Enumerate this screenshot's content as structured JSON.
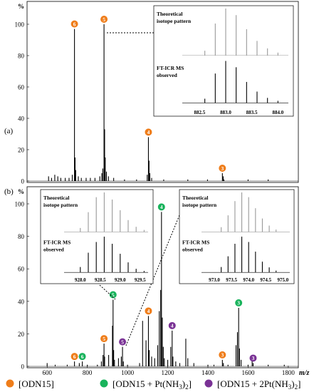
{
  "colors": {
    "odn15": "#ef7d1a",
    "pt1": "#19b35c",
    "pt2": "#7a3295",
    "spectrum": "#000000",
    "inset_theory": "#999999"
  },
  "chart_data": [
    {
      "type": "line",
      "panel_label": "(a)",
      "ylabel": "%",
      "xlim": [
        500,
        1850
      ],
      "ylim": [
        0,
        100
      ],
      "yticks": [
        0,
        20,
        40,
        60,
        80,
        100
      ],
      "peaks": [
        {
          "mz": 607,
          "rel": 3
        },
        {
          "mz": 622,
          "rel": 2
        },
        {
          "mz": 638,
          "rel": 4
        },
        {
          "mz": 653,
          "rel": 3
        },
        {
          "mz": 668,
          "rel": 2
        },
        {
          "mz": 690,
          "rel": 2
        },
        {
          "mz": 709,
          "rel": 2
        },
        {
          "mz": 725,
          "rel": 4
        },
        {
          "mz": 736,
          "rel": 97
        },
        {
          "mz": 739,
          "rel": 15
        },
        {
          "mz": 742,
          "rel": 7
        },
        {
          "mz": 755,
          "rel": 3
        },
        {
          "mz": 770,
          "rel": 2
        },
        {
          "mz": 794,
          "rel": 2
        },
        {
          "mz": 815,
          "rel": 2
        },
        {
          "mz": 838,
          "rel": 2
        },
        {
          "mz": 862,
          "rel": 3
        },
        {
          "mz": 872,
          "rel": 5
        },
        {
          "mz": 877,
          "rel": 8
        },
        {
          "mz": 883,
          "rel": 100
        },
        {
          "mz": 886,
          "rel": 33
        },
        {
          "mz": 889,
          "rel": 15
        },
        {
          "mz": 895,
          "rel": 6
        },
        {
          "mz": 905,
          "rel": 3
        },
        {
          "mz": 931,
          "rel": 2
        },
        {
          "mz": 985,
          "rel": 1
        },
        {
          "mz": 1045,
          "rel": 1
        },
        {
          "mz": 1098,
          "rel": 4
        },
        {
          "mz": 1104,
          "rel": 28
        },
        {
          "mz": 1107,
          "rel": 13
        },
        {
          "mz": 1111,
          "rel": 5
        },
        {
          "mz": 1120,
          "rel": 2
        },
        {
          "mz": 1180,
          "rel": 1
        },
        {
          "mz": 1300,
          "rel": 1
        },
        {
          "mz": 1398,
          "rel": 1
        },
        {
          "mz": 1472,
          "rel": 5
        },
        {
          "mz": 1476,
          "rel": 3
        },
        {
          "mz": 1480,
          "rel": 1
        },
        {
          "mz": 1600,
          "rel": 1
        },
        {
          "mz": 1700,
          "rel": 1
        }
      ],
      "markers": [
        {
          "mz": 736,
          "rel": 97,
          "group": "odn15",
          "label": "6"
        },
        {
          "mz": 883,
          "rel": 100,
          "group": "odn15",
          "label": "5"
        },
        {
          "mz": 1104,
          "rel": 28,
          "group": "odn15",
          "label": "4"
        },
        {
          "mz": 1472,
          "rel": 5,
          "group": "odn15",
          "label": "3"
        }
      ],
      "inset": {
        "theory_label": [
          "Theoretical",
          "isotope pattern"
        ],
        "observed_label": [
          "FT-ICR MS",
          "observed"
        ],
        "ticks": [
          "882.5",
          "883.0",
          "883.5",
          "884.0"
        ],
        "tick_values": [
          882.5,
          883.0,
          883.5,
          884.0
        ],
        "xlim": [
          882.25,
          884.2
        ],
        "theory_peaks": [
          {
            "x": 882.6,
            "h": 0.1
          },
          {
            "x": 882.8,
            "h": 0.68
          },
          {
            "x": 883.0,
            "h": 1.0
          },
          {
            "x": 883.2,
            "h": 0.86
          },
          {
            "x": 883.4,
            "h": 0.56
          },
          {
            "x": 883.6,
            "h": 0.31
          },
          {
            "x": 883.8,
            "h": 0.15
          },
          {
            "x": 884.0,
            "h": 0.06
          }
        ],
        "observed_peaks": [
          {
            "x": 882.6,
            "h": 0.1
          },
          {
            "x": 882.8,
            "h": 0.7
          },
          {
            "x": 883.0,
            "h": 1.0
          },
          {
            "x": 883.2,
            "h": 0.85
          },
          {
            "x": 883.4,
            "h": 0.5
          },
          {
            "x": 883.6,
            "h": 0.27
          },
          {
            "x": 883.8,
            "h": 0.12
          },
          {
            "x": 884.0,
            "h": 0.05
          }
        ]
      }
    },
    {
      "type": "line",
      "panel_label": "(b)",
      "ylabel": "%",
      "xlabel": "m/z",
      "xlim": [
        500,
        1850
      ],
      "ylim": [
        0,
        100
      ],
      "xticks": [
        600,
        800,
        1000,
        1200,
        1400,
        1600,
        1800
      ],
      "yticks": [
        0,
        20,
        40,
        60,
        80,
        100
      ],
      "peaks": [
        {
          "mz": 600,
          "rel": 2
        },
        {
          "mz": 640,
          "rel": 1
        },
        {
          "mz": 700,
          "rel": 1
        },
        {
          "mz": 736,
          "rel": 3
        },
        {
          "mz": 760,
          "rel": 2
        },
        {
          "mz": 775,
          "rel": 3
        },
        {
          "mz": 800,
          "rel": 1
        },
        {
          "mz": 850,
          "rel": 1
        },
        {
          "mz": 870,
          "rel": 3
        },
        {
          "mz": 878,
          "rel": 7
        },
        {
          "mz": 883,
          "rel": 14
        },
        {
          "mz": 886,
          "rel": 6
        },
        {
          "mz": 906,
          "rel": 7
        },
        {
          "mz": 925,
          "rel": 25
        },
        {
          "mz": 928,
          "rel": 41
        },
        {
          "mz": 931,
          "rel": 10
        },
        {
          "mz": 935,
          "rel": 4
        },
        {
          "mz": 955,
          "rel": 5
        },
        {
          "mz": 969,
          "rel": 6
        },
        {
          "mz": 975,
          "rel": 12
        },
        {
          "mz": 979,
          "rel": 3
        },
        {
          "mz": 1000,
          "rel": 1
        },
        {
          "mz": 1060,
          "rel": 2
        },
        {
          "mz": 1075,
          "rel": 28
        },
        {
          "mz": 1092,
          "rel": 16
        },
        {
          "mz": 1104,
          "rel": 31
        },
        {
          "mz": 1108,
          "rel": 10
        },
        {
          "mz": 1120,
          "rel": 6
        },
        {
          "mz": 1135,
          "rel": 5
        },
        {
          "mz": 1150,
          "rel": 13
        },
        {
          "mz": 1158,
          "rel": 34
        },
        {
          "mz": 1165,
          "rel": 47
        },
        {
          "mz": 1169,
          "rel": 95
        },
        {
          "mz": 1173,
          "rel": 30
        },
        {
          "mz": 1178,
          "rel": 12
        },
        {
          "mz": 1183,
          "rel": 5
        },
        {
          "mz": 1200,
          "rel": 4
        },
        {
          "mz": 1215,
          "rel": 12
        },
        {
          "mz": 1222,
          "rel": 22
        },
        {
          "mz": 1226,
          "rel": 6
        },
        {
          "mz": 1240,
          "rel": 3
        },
        {
          "mz": 1260,
          "rel": 2
        },
        {
          "mz": 1290,
          "rel": 17
        },
        {
          "mz": 1300,
          "rel": 5
        },
        {
          "mz": 1330,
          "rel": 2
        },
        {
          "mz": 1400,
          "rel": 1
        },
        {
          "mz": 1430,
          "rel": 1
        },
        {
          "mz": 1472,
          "rel": 4
        },
        {
          "mz": 1477,
          "rel": 2
        },
        {
          "mz": 1500,
          "rel": 1
        },
        {
          "mz": 1540,
          "rel": 13
        },
        {
          "mz": 1547,
          "rel": 21
        },
        {
          "mz": 1553,
          "rel": 36
        },
        {
          "mz": 1557,
          "rel": 11
        },
        {
          "mz": 1565,
          "rel": 4
        },
        {
          "mz": 1600,
          "rel": 1
        },
        {
          "mz": 1620,
          "rel": 4
        },
        {
          "mz": 1625,
          "rel": 2
        },
        {
          "mz": 1700,
          "rel": 1
        },
        {
          "mz": 1780,
          "rel": 1
        }
      ],
      "markers": [
        {
          "mz": 736,
          "rel": 3,
          "group": "odn15",
          "label": "6"
        },
        {
          "mz": 775,
          "rel": 3,
          "group": "pt1",
          "label": "6"
        },
        {
          "mz": 883,
          "rel": 14,
          "group": "odn15",
          "label": "5"
        },
        {
          "mz": 928,
          "rel": 41,
          "group": "pt1",
          "label": "5"
        },
        {
          "mz": 975,
          "rel": 12,
          "group": "pt2",
          "label": "5"
        },
        {
          "mz": 1104,
          "rel": 31,
          "group": "odn15",
          "label": "4"
        },
        {
          "mz": 1169,
          "rel": 95,
          "group": "pt1",
          "label": "4"
        },
        {
          "mz": 1222,
          "rel": 22,
          "group": "pt2",
          "label": "4"
        },
        {
          "mz": 1472,
          "rel": 4,
          "group": "odn15",
          "label": "3"
        },
        {
          "mz": 1553,
          "rel": 36,
          "group": "pt1",
          "label": "3"
        },
        {
          "mz": 1625,
          "rel": 2,
          "group": "pt2",
          "label": "3"
        }
      ],
      "insets": [
        {
          "theory_label": [
            "Theoretical",
            "isotope pattern"
          ],
          "observed_label": [
            "FT-ICR MS",
            "observed"
          ],
          "ticks": [
            "928.0",
            "928.5",
            "929.0",
            "929.5"
          ],
          "tick_values": [
            928.0,
            928.5,
            929.0,
            929.5
          ],
          "xlim": [
            927.7,
            929.7
          ],
          "theory_peaks": [
            {
              "x": 928.0,
              "h": 0.1
            },
            {
              "x": 928.2,
              "h": 0.5
            },
            {
              "x": 928.4,
              "h": 0.88
            },
            {
              "x": 928.6,
              "h": 1.0
            },
            {
              "x": 928.8,
              "h": 0.82
            },
            {
              "x": 929.0,
              "h": 0.55
            },
            {
              "x": 929.2,
              "h": 0.3
            },
            {
              "x": 929.4,
              "h": 0.13
            },
            {
              "x": 929.6,
              "h": 0.05
            }
          ],
          "observed_peaks": [
            {
              "x": 928.0,
              "h": 0.15
            },
            {
              "x": 928.2,
              "h": 0.55
            },
            {
              "x": 928.4,
              "h": 0.85
            },
            {
              "x": 928.6,
              "h": 1.0
            },
            {
              "x": 928.8,
              "h": 0.8
            },
            {
              "x": 929.0,
              "h": 0.52
            },
            {
              "x": 929.2,
              "h": 0.28
            },
            {
              "x": 929.4,
              "h": 0.1
            },
            {
              "x": 929.6,
              "h": 0.04
            }
          ]
        },
        {
          "theory_label": [
            "Theoretical",
            "isotope pattern"
          ],
          "observed_label": [
            "FT-ICR MS",
            "observed"
          ],
          "ticks": [
            "973.0",
            "973.5",
            "974.0",
            "974.5",
            "975.0"
          ],
          "tick_values": [
            973.0,
            973.5,
            974.0,
            974.5,
            975.0
          ],
          "xlim": [
            972.75,
            975.2
          ],
          "theory_peaks": [
            {
              "x": 973.2,
              "h": 0.12
            },
            {
              "x": 973.4,
              "h": 0.42
            },
            {
              "x": 973.6,
              "h": 0.78
            },
            {
              "x": 973.8,
              "h": 1.0
            },
            {
              "x": 974.0,
              "h": 0.88
            },
            {
              "x": 974.2,
              "h": 0.6
            },
            {
              "x": 974.4,
              "h": 0.34
            },
            {
              "x": 974.6,
              "h": 0.16
            },
            {
              "x": 974.8,
              "h": 0.06
            }
          ],
          "observed_peaks": [
            {
              "x": 973.2,
              "h": 0.15
            },
            {
              "x": 973.4,
              "h": 0.45
            },
            {
              "x": 973.6,
              "h": 0.8
            },
            {
              "x": 973.8,
              "h": 1.0
            },
            {
              "x": 974.0,
              "h": 0.85
            },
            {
              "x": 974.2,
              "h": 0.58
            },
            {
              "x": 974.4,
              "h": 0.3
            },
            {
              "x": 974.6,
              "h": 0.14
            },
            {
              "x": 974.8,
              "h": 0.05
            }
          ]
        }
      ]
    }
  ],
  "legend": {
    "items": [
      {
        "group": "odn15",
        "label": "[ODN15]"
      },
      {
        "group": "pt1",
        "label": "[ODN15 + Pt(NH",
        "sub": "3",
        "tail": ")",
        "sub2": "2",
        "end": "]"
      },
      {
        "group": "pt2",
        "label": "[ODN15 + 2Pt(NH",
        "sub": "3",
        "tail": ")",
        "sub2": "2",
        "end": "]"
      }
    ]
  }
}
